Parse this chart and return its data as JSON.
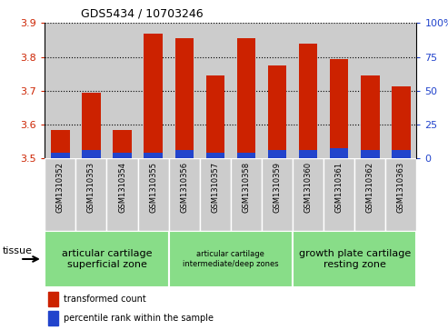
{
  "title": "GDS5434 / 10703246",
  "samples": [
    "GSM1310352",
    "GSM1310353",
    "GSM1310354",
    "GSM1310355",
    "GSM1310356",
    "GSM1310357",
    "GSM1310358",
    "GSM1310359",
    "GSM1310360",
    "GSM1310361",
    "GSM1310362",
    "GSM1310363"
  ],
  "transformed_counts": [
    3.585,
    3.695,
    3.585,
    3.868,
    3.855,
    3.745,
    3.856,
    3.775,
    3.838,
    3.793,
    3.745,
    3.713
  ],
  "percentile_ranks": [
    3,
    4,
    3,
    3,
    4,
    3,
    3,
    4,
    4,
    5,
    4,
    4
  ],
  "bar_base": 3.5,
  "ylim_left": [
    3.5,
    3.9
  ],
  "ylim_right": [
    0,
    100
  ],
  "yticks_left": [
    3.5,
    3.6,
    3.7,
    3.8,
    3.9
  ],
  "yticks_right": [
    0,
    25,
    50,
    75,
    100
  ],
  "bar_color": "#cc2200",
  "percentile_color": "#2244cc",
  "col_bg_color": "#cccccc",
  "tissue_groups": [
    {
      "label": "articular cartilage\nsuperficial zone",
      "start": 0,
      "end": 4,
      "fontsize": 8
    },
    {
      "label": "articular cartilage\nintermediate/deep zones",
      "start": 4,
      "end": 8,
      "fontsize": 6
    },
    {
      "label": "growth plate cartilage\nresting zone",
      "start": 8,
      "end": 12,
      "fontsize": 8
    }
  ],
  "tissue_bg_color": "#88dd88",
  "tissue_label": "tissue",
  "legend_items": [
    {
      "label": "transformed count",
      "color": "#cc2200"
    },
    {
      "label": "percentile rank within the sample",
      "color": "#2244cc"
    }
  ],
  "grid_yticks": [
    3.6,
    3.7,
    3.8,
    3.9
  ]
}
